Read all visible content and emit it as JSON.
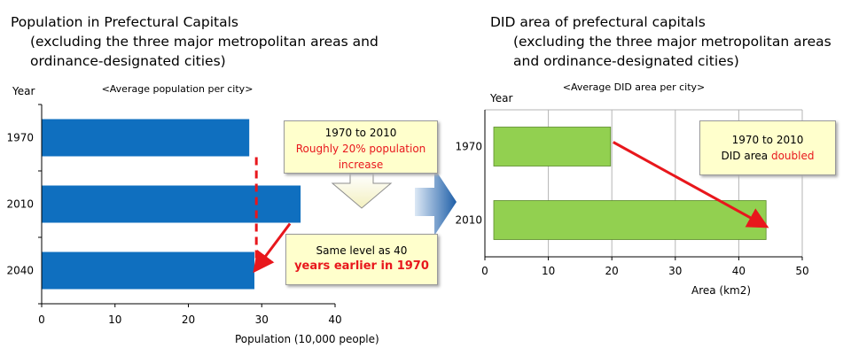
{
  "left": {
    "title_line1": "Population in Prefectural Capitals",
    "title_line2": "(excluding the three major metropolitan areas and",
    "title_line3": "ordinance-designated cities)",
    "subtitle": "<Average population per city>",
    "y_axis_label": "Year",
    "x_axis_label": "Population (10,000 people)",
    "callout_top": {
      "line1": "1970 to 2010",
      "line2": "Roughly 20% population",
      "line3": "increase"
    },
    "callout_bottom": {
      "line1": "Same level as 40",
      "line2": "years earlier in 1970"
    }
  },
  "right": {
    "title_line1": "DID area of prefectural capitals",
    "title_line2": "(excluding the three major metropolitan areas",
    "title_line3": "and ordinance-designated cities)",
    "subtitle": "<Average DID area per city>",
    "y_axis_label": "Year",
    "x_axis_label": "Area (km2)",
    "callout": {
      "line1": "1970 to 2010",
      "line2_a": "DID area ",
      "line2_b": "doubled"
    }
  },
  "colors": {
    "blue_bar": "#0f6fbf",
    "green_bar": "#92d050",
    "arrow_red": "#e8171c"
  },
  "chart_data": [
    {
      "type": "bar",
      "orientation": "horizontal",
      "title": "Population in Prefectural Capitals",
      "subtitle": "<Average population per city>",
      "categories": [
        "1970",
        "2010",
        "2040"
      ],
      "values": [
        28.3,
        35.3,
        29.0
      ],
      "xlabel": "Population (10,000 people)",
      "ylabel": "Year",
      "xlim": [
        0,
        40
      ],
      "xticks": [
        "0",
        "10",
        "20",
        "30",
        "40"
      ],
      "grid": false
    },
    {
      "type": "bar",
      "orientation": "horizontal",
      "title": "DID area of prefectural capitals",
      "subtitle": "<Average DID area per city>",
      "categories": [
        "1970",
        "2010"
      ],
      "values": [
        19.8,
        44.3
      ],
      "xlabel": "Area (km2)",
      "ylabel": "Year",
      "xlim": [
        0,
        50
      ],
      "xticks": [
        "0",
        "10",
        "20",
        "30",
        "40",
        "50"
      ],
      "grid": true
    }
  ]
}
